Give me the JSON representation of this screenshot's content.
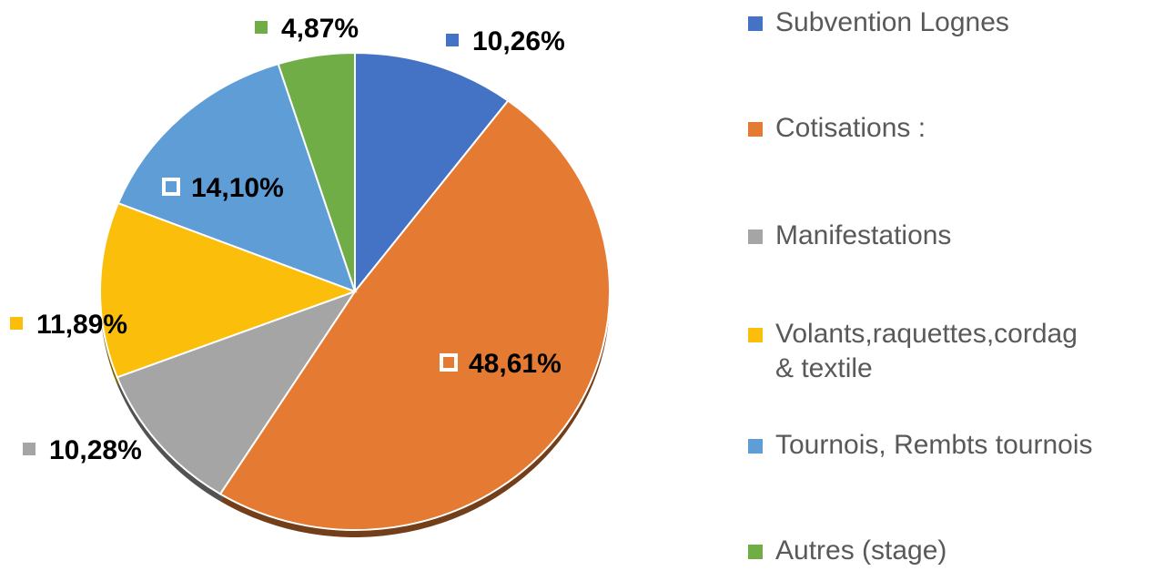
{
  "chart_data": {
    "type": "pie",
    "categories": [
      "Subvention Lognes",
      "Cotisations :",
      "Manifestations",
      "Volants,raquettes,cordag\n& textile",
      "Tournois, Rembts tournois",
      "Autres (stage)"
    ],
    "values": [
      10.26,
      48.61,
      10.28,
      11.89,
      14.1,
      4.87
    ],
    "value_labels": [
      "10,26%",
      "48,61%",
      "10,28%",
      "11,89%",
      "14,10%",
      "4,87%"
    ],
    "colors": [
      "#4472c4",
      "#e57b33",
      "#a5a5a5",
      "#fbbf0b",
      "#5e9dd6",
      "#70ad47"
    ],
    "legend": "right"
  }
}
